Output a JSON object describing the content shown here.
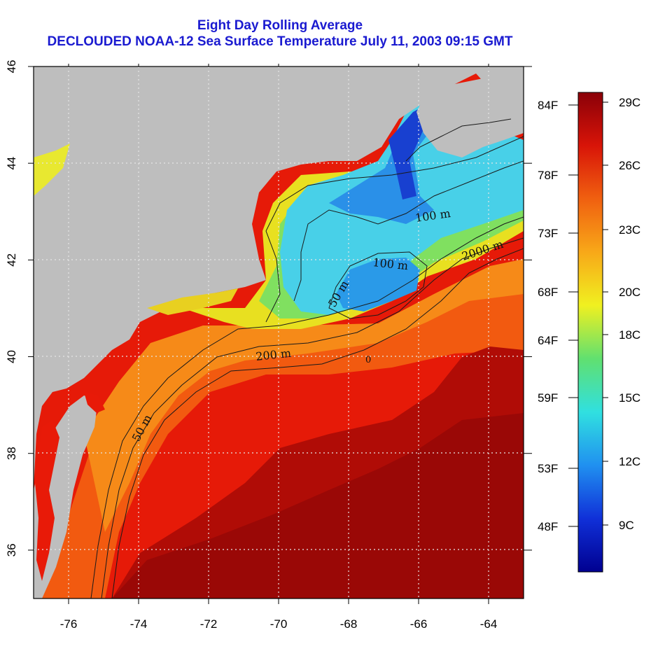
{
  "title": {
    "line1": "Eight Day Rolling Average",
    "line2": "DECLOUDED NOAA-12 Sea Surface Temperature July 11, 2003 09:15 GMT"
  },
  "map": {
    "x_ticks": [
      "-76",
      "-74",
      "-72",
      "-70",
      "-68",
      "-66",
      "-64"
    ],
    "y_ticks": [
      "36",
      "38",
      "40",
      "42",
      "44",
      "46"
    ],
    "lon_range": [
      -77,
      -63
    ],
    "lat_range": [
      35,
      46
    ],
    "contour_labels": [
      "100 m",
      "2000 m",
      "100 m",
      "50 m",
      "200 m",
      "50 m",
      "0"
    ],
    "colors": {
      "land": "#bebebe",
      "ocean_warm": "#e81a08",
      "ocean_hot": "#a80a06",
      "gulf_of_maine": "#4fc8f0",
      "contour": "#1a1a1a",
      "grid": "#e6e6e6"
    }
  },
  "colorbar": {
    "celsius_labels": [
      "29C",
      "26C",
      "23C",
      "20C",
      "18C",
      "15C",
      "12C",
      "9C"
    ],
    "fahrenheit_labels": [
      "84F",
      "78F",
      "73F",
      "68F",
      "64F",
      "59F",
      "53F",
      "48F"
    ],
    "gradient_colors": [
      "#8a0008",
      "#d81408",
      "#f06010",
      "#f8a818",
      "#f0f020",
      "#60e070",
      "#30e0e0",
      "#2090f0",
      "#1030d8",
      "#000090"
    ]
  }
}
